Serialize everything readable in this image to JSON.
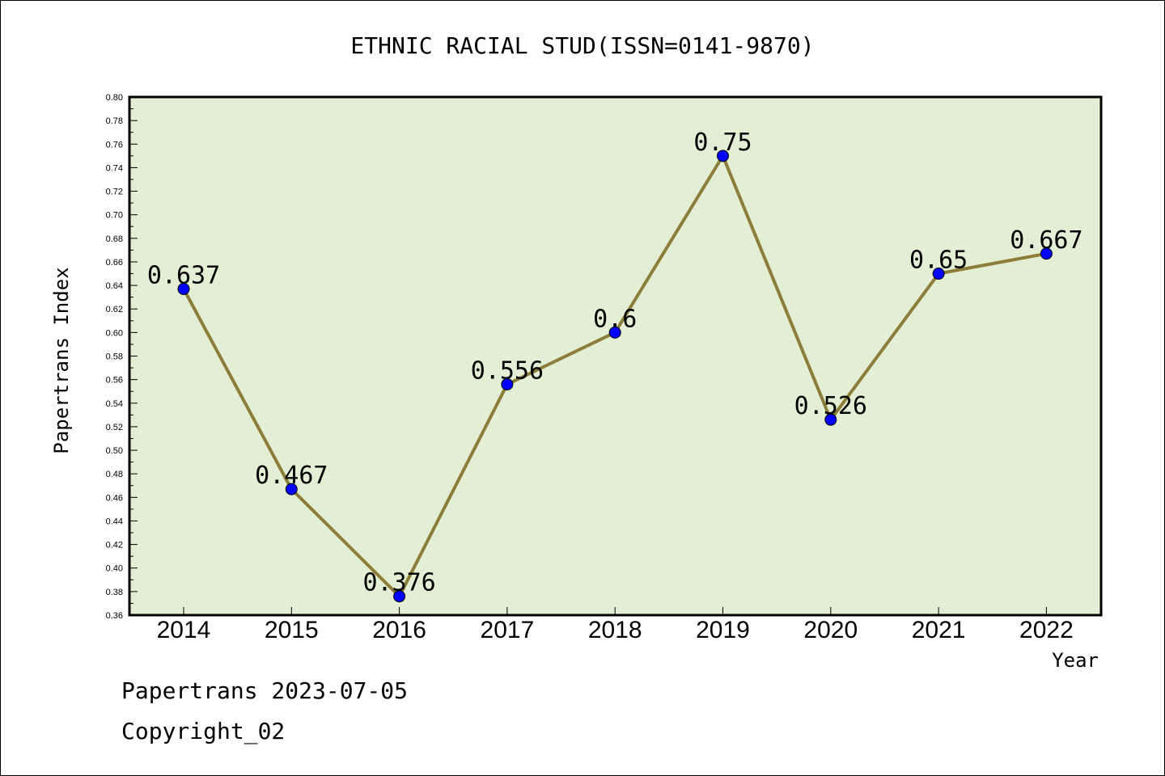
{
  "chart_data": {
    "type": "line",
    "title": "ETHNIC RACIAL STUD(ISSN=0141-9870)",
    "xlabel": "Year",
    "ylabel": "Papertrans Index",
    "categories": [
      "2014",
      "2015",
      "2016",
      "2017",
      "2018",
      "2019",
      "2020",
      "2021",
      "2022"
    ],
    "series": [
      {
        "values": [
          0.637,
          0.467,
          0.376,
          0.556,
          0.6,
          0.75,
          0.526,
          0.65,
          0.667
        ],
        "labels": [
          "0.637",
          "0.467",
          "0.376",
          "0.556",
          "0.6",
          "0.75",
          "0.526",
          "0.65",
          "0.667"
        ]
      }
    ],
    "ylim": [
      0.36,
      0.8
    ],
    "yticks": [
      "0.36",
      "0.38",
      "0.40",
      "0.42",
      "0.44",
      "0.46",
      "0.48",
      "0.50",
      "0.52",
      "0.54",
      "0.56",
      "0.58",
      "0.60",
      "0.62",
      "0.64",
      "0.66",
      "0.68",
      "0.70",
      "0.72",
      "0.74",
      "0.76",
      "0.78",
      "0.80"
    ],
    "grid": false,
    "colors": {
      "plot_bg": "#e2efd4",
      "line": "#8c7d3a",
      "marker": "#0000ff"
    }
  },
  "footer": {
    "line1": "Papertrans 2023-07-05",
    "line2": "Copyright_02"
  }
}
